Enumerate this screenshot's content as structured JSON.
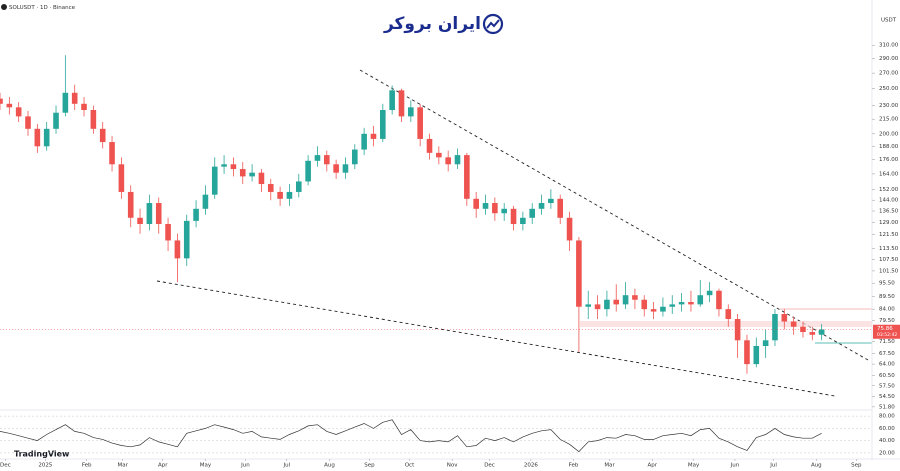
{
  "chart_data": {
    "type": "candlestick",
    "title": "SOLUSDT · 1D · Binance",
    "logo": "ایران بروکر",
    "watermark": "TradingView",
    "y_unit": "USDT",
    "log_scale": true,
    "grid": false,
    "up_color": "#26a69a",
    "down_color": "#ef5350",
    "x": [
      0,
      7,
      14,
      21,
      28,
      35,
      42,
      49,
      56,
      63,
      70,
      77,
      84,
      91,
      98,
      105,
      112,
      119,
      126,
      133,
      140,
      147,
      154,
      161,
      168,
      175,
      182,
      189,
      196,
      203,
      210,
      217,
      224,
      231,
      238,
      245,
      252,
      259,
      266,
      273,
      280,
      287,
      294,
      301,
      308,
      315,
      322,
      329,
      336,
      343,
      350,
      357,
      364,
      371,
      378,
      385,
      392,
      399,
      406,
      413,
      420,
      427,
      434,
      441,
      448,
      455,
      462,
      469,
      476,
      483,
      490,
      497,
      504,
      511,
      518,
      525,
      532,
      539,
      546,
      553,
      560,
      567,
      574,
      581,
      588,
      595,
      602,
      609,
      616
    ],
    "open": [
      238,
      232,
      228,
      218,
      205,
      188,
      205,
      222,
      245,
      232,
      225,
      205,
      192,
      172,
      150,
      132,
      128,
      142,
      128,
      118,
      108,
      130,
      138,
      148,
      170,
      172,
      168,
      162,
      165,
      156,
      150,
      145,
      150,
      158,
      175,
      180,
      172,
      165,
      172,
      185,
      200,
      195,
      225,
      248,
      218,
      228,
      195,
      182,
      178,
      172,
      180,
      145,
      138,
      142,
      135,
      138,
      128,
      132,
      138,
      142,
      145,
      132,
      118,
      85,
      86,
      84,
      88,
      86,
      90,
      88,
      84,
      83,
      85,
      86,
      87,
      86,
      90,
      92,
      84,
      80,
      72,
      64,
      70,
      72,
      82,
      79,
      77,
      75,
      74
    ],
    "high": [
      245,
      240,
      234,
      224,
      210,
      212,
      230,
      295,
      255,
      240,
      230,
      212,
      198,
      178,
      155,
      138,
      148,
      146,
      132,
      122,
      134,
      144,
      155,
      178,
      180,
      178,
      174,
      172,
      168,
      160,
      154,
      156,
      164,
      180,
      188,
      184,
      176,
      178,
      190,
      206,
      208,
      232,
      254,
      250,
      236,
      232,
      200,
      188,
      184,
      186,
      182,
      150,
      148,
      146,
      142,
      140,
      136,
      142,
      148,
      152,
      148,
      136,
      120,
      92,
      90,
      92,
      95,
      96,
      93,
      90,
      87,
      89,
      90,
      91,
      92,
      97,
      96,
      93,
      86,
      82,
      74,
      73,
      76,
      84,
      84,
      81,
      79,
      77,
      78
    ],
    "low": [
      225,
      220,
      212,
      198,
      182,
      184,
      200,
      218,
      225,
      218,
      200,
      186,
      166,
      145,
      126,
      122,
      124,
      122,
      112,
      96,
      104,
      126,
      134,
      145,
      164,
      162,
      156,
      158,
      150,
      144,
      140,
      140,
      146,
      155,
      170,
      166,
      160,
      160,
      168,
      180,
      188,
      192,
      220,
      212,
      212,
      188,
      176,
      172,
      166,
      168,
      140,
      132,
      134,
      130,
      130,
      124,
      124,
      128,
      134,
      138,
      128,
      112,
      68,
      80,
      80,
      81,
      83,
      84,
      84,
      81,
      80,
      81,
      82,
      83,
      83,
      85,
      87,
      81,
      77,
      66,
      61,
      63,
      66,
      70,
      76,
      74,
      73,
      72,
      72
    ],
    "close": [
      232,
      228,
      218,
      205,
      188,
      205,
      222,
      245,
      232,
      225,
      205,
      192,
      172,
      150,
      132,
      128,
      142,
      128,
      118,
      108,
      130,
      138,
      148,
      170,
      172,
      168,
      162,
      165,
      156,
      150,
      145,
      150,
      158,
      175,
      180,
      172,
      165,
      172,
      185,
      200,
      195,
      225,
      248,
      218,
      228,
      195,
      182,
      178,
      172,
      180,
      145,
      138,
      142,
      135,
      138,
      128,
      132,
      138,
      142,
      145,
      132,
      118,
      85,
      86,
      84,
      88,
      86,
      90,
      88,
      84,
      83,
      85,
      86,
      87,
      86,
      90,
      92,
      84,
      80,
      72,
      64,
      70,
      72,
      82,
      79,
      77,
      75,
      74,
      76
    ],
    "last_price": 75.86,
    "countdown": "03:52:42",
    "xlim": [
      0,
      650
    ],
    "xticks": [
      {
        "value": 4,
        "label": "Dec"
      },
      {
        "value": 34,
        "label": "2025"
      },
      {
        "value": 65,
        "label": "Feb"
      },
      {
        "value": 92,
        "label": "Mar"
      },
      {
        "value": 122,
        "label": "Apr"
      },
      {
        "value": 154,
        "label": "May"
      },
      {
        "value": 184,
        "label": "Jun"
      },
      {
        "value": 215,
        "label": "Jul"
      },
      {
        "value": 247,
        "label": "Aug"
      },
      {
        "value": 277,
        "label": "Sep"
      },
      {
        "value": 307,
        "label": "Oct"
      },
      {
        "value": 339,
        "label": "Nov"
      },
      {
        "value": 367,
        "label": "Dec"
      },
      {
        "value": 398,
        "label": "2026"
      },
      {
        "value": 430,
        "label": "Feb"
      },
      {
        "value": 457,
        "label": "Mar"
      },
      {
        "value": 489,
        "label": "Apr"
      },
      {
        "value": 520,
        "label": "May"
      },
      {
        "value": 551,
        "label": "Jun"
      },
      {
        "value": 580,
        "label": "Jul"
      },
      {
        "value": 612,
        "label": "Aug"
      },
      {
        "value": 642,
        "label": "Sep"
      }
    ],
    "ylim": [
      51,
      360
    ],
    "yticks": [
      {
        "value": 310,
        "label": "310.00"
      },
      {
        "value": 290,
        "label": "290.00"
      },
      {
        "value": 270,
        "label": "270.00"
      },
      {
        "value": 250,
        "label": "250.00"
      },
      {
        "value": 230,
        "label": "230.00"
      },
      {
        "value": 215,
        "label": "215.00"
      },
      {
        "value": 200,
        "label": "200.00"
      },
      {
        "value": 188,
        "label": "188.00"
      },
      {
        "value": 176,
        "label": "176.00"
      },
      {
        "value": 164,
        "label": "164.00"
      },
      {
        "value": 152,
        "label": "152.00"
      },
      {
        "value": 144,
        "label": "144.00"
      },
      {
        "value": 136.5,
        "label": "136.50"
      },
      {
        "value": 129,
        "label": "129.00"
      },
      {
        "value": 121.5,
        "label": "121.50"
      },
      {
        "value": 113.5,
        "label": "113.50"
      },
      {
        "value": 107.5,
        "label": "107.50"
      },
      {
        "value": 101.5,
        "label": "101.50"
      },
      {
        "value": 95.5,
        "label": "95.50"
      },
      {
        "value": 89.5,
        "label": "89.50"
      },
      {
        "value": 84,
        "label": "84.00"
      },
      {
        "value": 79.5,
        "label": "79.50"
      },
      {
        "value": 71.5,
        "label": "71.50"
      },
      {
        "value": 67.5,
        "label": "67.50"
      },
      {
        "value": 64,
        "label": "64.00"
      },
      {
        "value": 60.5,
        "label": "60.50"
      },
      {
        "value": 57.5,
        "label": "57.50"
      },
      {
        "value": 54.5,
        "label": "54.50"
      },
      {
        "value": 51.8,
        "label": "51.80"
      }
    ],
    "rsi": {
      "color": "#333333",
      "ylim": [
        10,
        90
      ],
      "yticks": [
        {
          "value": 80,
          "label": "80.00"
        },
        {
          "value": 60,
          "label": "60.00"
        },
        {
          "value": 40,
          "label": "40.00"
        },
        {
          "value": 20,
          "label": "20.00"
        }
      ],
      "values": [
        55,
        52,
        48,
        44,
        40,
        50,
        58,
        66,
        55,
        52,
        45,
        42,
        36,
        32,
        30,
        33,
        45,
        38,
        34,
        30,
        52,
        56,
        60,
        66,
        62,
        58,
        52,
        55,
        46,
        44,
        42,
        50,
        56,
        64,
        66,
        55,
        50,
        56,
        62,
        68,
        60,
        70,
        74,
        50,
        58,
        40,
        38,
        40,
        38,
        48,
        30,
        32,
        44,
        40,
        45,
        38,
        46,
        52,
        56,
        58,
        42,
        34,
        22,
        38,
        40,
        45,
        44,
        50,
        48,
        42,
        42,
        48,
        50,
        52,
        48,
        58,
        60,
        44,
        38,
        30,
        24,
        45,
        50,
        60,
        50,
        46,
        44,
        44,
        52
      ]
    }
  }
}
